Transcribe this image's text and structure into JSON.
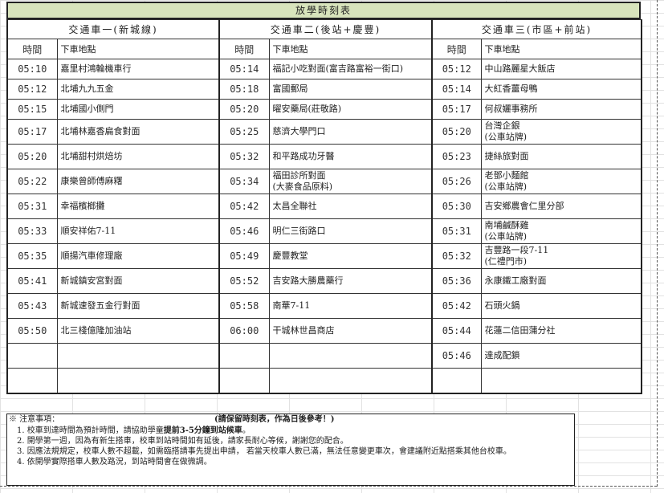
{
  "title": "放學時刻表",
  "routes": [
    {
      "name": "交通車一(新城線)",
      "time_header": "時間",
      "stop_header": "下車地點",
      "rows": [
        [
          "05:10",
          "嘉里村鴻輪機車行"
        ],
        [
          "05:12",
          "北埔九九五金"
        ],
        [
          "05:15",
          "北埔國小側門"
        ],
        [
          "05:17",
          "北埔林嘉香扁食對面"
        ],
        [
          "05:20",
          "北埔甜村烘焙坊"
        ],
        [
          "05:22",
          "康樂曾師傅麻糬"
        ],
        [
          "05:31",
          "幸福檳榔攤"
        ],
        [
          "05:33",
          "順安祥佑7-11"
        ],
        [
          "05:35",
          "順揚汽車修理廠"
        ],
        [
          "05:41",
          "新城鎮安宮對面"
        ],
        [
          "05:43",
          "新城速發五金行對面"
        ],
        [
          "05:50",
          "北三棧億隆加油站"
        ],
        [
          "",
          ""
        ],
        [
          "",
          ""
        ]
      ]
    },
    {
      "name": "交通車二(後站+慶豐)",
      "time_header": "時間",
      "stop_header": "下車地點",
      "rows": [
        [
          "05:14",
          "福記小吃對面(富吉路富裕一街口)"
        ],
        [
          "05:18",
          "富國郵局"
        ],
        [
          "05:20",
          "曜安藥局(莊敬路)"
        ],
        [
          "05:25",
          "慈濟大學門口"
        ],
        [
          "05:32",
          "和平路成功牙醫"
        ],
        [
          "05:34",
          "福田診所對面\n(大麥食品原料)"
        ],
        [
          "05:42",
          "太昌全聯社"
        ],
        [
          "05:46",
          "明仁三街路口"
        ],
        [
          "05:49",
          "慶豐教堂"
        ],
        [
          "05:52",
          "吉安路大勝農藥行"
        ],
        [
          "05:58",
          "南華7-11"
        ],
        [
          "06:00",
          "干城林世昌商店"
        ],
        [
          "",
          ""
        ],
        [
          "",
          ""
        ]
      ]
    },
    {
      "name": "交通車三(市區+前站)",
      "time_header": "時間",
      "stop_header": "下車地點",
      "rows": [
        [
          "05:12",
          "中山路麗星大飯店"
        ],
        [
          "05:14",
          "大紅香薑母鴨"
        ],
        [
          "05:17",
          "何叔孋事務所"
        ],
        [
          "05:20",
          "台灣企銀\n(公車站牌)"
        ],
        [
          "05:23",
          "捷絲旅對面"
        ],
        [
          "05:26",
          "老鄧小麵館\n(公車站牌)"
        ],
        [
          "05:30",
          "吉安鄉農會仁里分部"
        ],
        [
          "05:31",
          "南埔鹹酥雞\n(公車站牌)"
        ],
        [
          "05:32",
          "吉豐路一段7-11\n(仁禮門市)"
        ],
        [
          "05:36",
          "永康鐵工廠對面"
        ],
        [
          "05:42",
          "石頭火鍋"
        ],
        [
          "05:44",
          "花蓮二信田蒲分社"
        ],
        [
          "05:46",
          "達成配鎖"
        ],
        [
          "",
          ""
        ]
      ]
    }
  ],
  "notes": {
    "heading": "※ 注意事項：",
    "keep": "(請保留時刻表，作為日後參考！)",
    "items": [
      {
        "text": "1. 校車到達時間為預計時間，請協助學童",
        "bold": "提前3-5分鐘到站候車",
        "tail": "。"
      },
      {
        "text": "2. 開學第一週，因為有新生搭車，校車到站時間如有延後，請家長耐心等候，謝謝您的配合。",
        "bold": "",
        "tail": ""
      },
      {
        "text": "3. 因應法規規定，校車人數不超載，如需臨搭請事先提出申請， 若當天校車人數已滿，無法任意變更車次，會建議附近點搭乘其他台校車。",
        "bold": "",
        "tail": ""
      },
      {
        "text": "4. 依開學實際搭車人數及路況，到站時間會在做微調。",
        "bold": "",
        "tail": ""
      }
    ]
  }
}
